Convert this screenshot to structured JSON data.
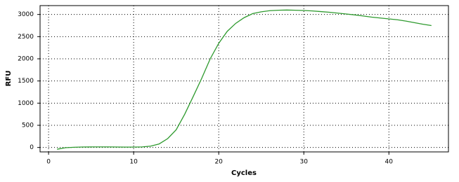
{
  "chart_data": {
    "type": "line",
    "x_label": "Cycles",
    "y_label": "RFU",
    "x": [
      1,
      2,
      3,
      4,
      5,
      6,
      7,
      8,
      9,
      10,
      11,
      12,
      13,
      14,
      15,
      16,
      17,
      18,
      19,
      20,
      21,
      22,
      23,
      24,
      25,
      26,
      27,
      28,
      29,
      30,
      31,
      32,
      33,
      34,
      35,
      36,
      37,
      38,
      39,
      40,
      41,
      42,
      43,
      44,
      45
    ],
    "series": [
      {
        "name": "RFU",
        "color": "#2e9a2e",
        "values": [
          -40,
          -5,
          5,
          10,
          12,
          12,
          12,
          10,
          8,
          8,
          12,
          30,
          80,
          200,
          400,
          750,
          1150,
          1560,
          2000,
          2350,
          2620,
          2800,
          2930,
          3020,
          3060,
          3085,
          3095,
          3100,
          3095,
          3090,
          3080,
          3065,
          3050,
          3030,
          3010,
          2990,
          2965,
          2940,
          2920,
          2900,
          2880,
          2850,
          2815,
          2780,
          2750
        ]
      }
    ],
    "xlim": [
      -1,
      47
    ],
    "ylim": [
      -100,
      3200
    ],
    "xticks": [
      0,
      10,
      20,
      30,
      40
    ],
    "yticks": [
      0,
      500,
      1000,
      1500,
      2000,
      2500,
      3000
    ],
    "grid": true
  }
}
